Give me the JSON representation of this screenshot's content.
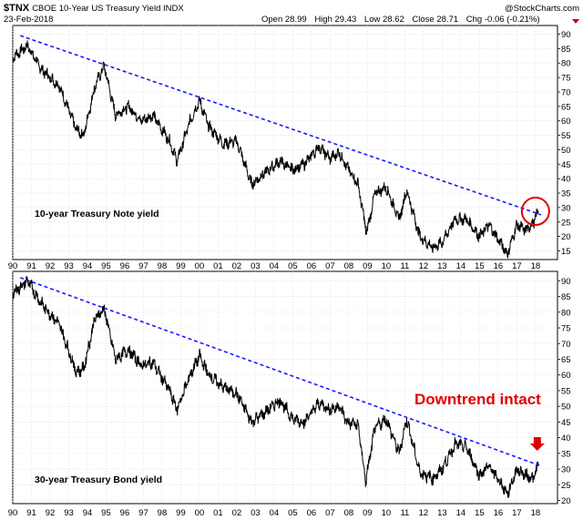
{
  "header": {
    "symbol": "$TNX",
    "name": "CBOE 10-Year US Treasury Yield INDX",
    "date": "23-Feb-2018",
    "brand": "@StockCharts.com",
    "open_label": "Open",
    "open_value": "28.99",
    "high_label": "High",
    "high_value": "29.43",
    "low_label": "Low",
    "low_value": "28.62",
    "close_label": "Close",
    "close_value": "28.71",
    "chg_label": "Chg",
    "chg_value": "-0.06 (-0.21%)",
    "chg_arrow_color": "#cc0000"
  },
  "x_ticks": [
    "90",
    "91",
    "92",
    "93",
    "94",
    "95",
    "96",
    "97",
    "98",
    "99",
    "00",
    "01",
    "02",
    "03",
    "04",
    "05",
    "06",
    "07",
    "08",
    "09",
    "10",
    "11",
    "12",
    "13",
    "14",
    "15",
    "16",
    "17",
    "18"
  ],
  "colors": {
    "trend": "#1a1aff",
    "series": "#000000",
    "annotation": "#e00000",
    "grid": "#d8d8d8"
  },
  "chart_data": [
    {
      "type": "line",
      "series_label": "10-year Treasury Note yield",
      "x_unit": "year",
      "xlim": [
        1990.0,
        2018.3
      ],
      "ylim": [
        12,
        93
      ],
      "yticks": [
        15,
        20,
        25,
        30,
        35,
        40,
        45,
        50,
        55,
        60,
        65,
        70,
        75,
        80,
        85,
        90
      ],
      "x": [
        1990.0,
        1990.8,
        1991.5,
        1992.5,
        1993.4,
        1993.8,
        1994.4,
        1994.9,
        1995.5,
        1996.2,
        1996.9,
        1997.5,
        1998.4,
        1998.8,
        1999.5,
        2000.0,
        2000.5,
        2001.3,
        2002.0,
        2002.8,
        2003.5,
        2004.3,
        2005.0,
        2005.6,
        2006.4,
        2007.0,
        2007.5,
        2007.9,
        2008.5,
        2008.95,
        2009.4,
        2010.0,
        2010.7,
        2011.1,
        2011.8,
        2012.5,
        2013.0,
        2013.7,
        2014.3,
        2015.0,
        2015.5,
        2016.2,
        2016.5,
        2017.0,
        2017.5,
        2017.9,
        2018.15
      ],
      "values": [
        82,
        86,
        78,
        72,
        57,
        55,
        72,
        79,
        62,
        65,
        60,
        62,
        53,
        46,
        60,
        67,
        58,
        52,
        53,
        38,
        42,
        46,
        43,
        45,
        51,
        47,
        49,
        44,
        38,
        21,
        35,
        37,
        26,
        36,
        20,
        16,
        18,
        26,
        26,
        20,
        24,
        17,
        14,
        24,
        22,
        25,
        28.7
      ],
      "trendline": {
        "x": [
          1990.4,
          2018.3
        ],
        "values": [
          89.5,
          27.5
        ]
      },
      "highlight_circle": {
        "x": 2018.0,
        "value": 28.7,
        "color": "#e00000"
      }
    },
    {
      "type": "line",
      "series_label": "30-year Treasury Bond yield",
      "annotation": "Downtrend intact",
      "x_unit": "year",
      "xlim": [
        1990.0,
        2018.3
      ],
      "ylim": [
        19,
        93
      ],
      "yticks": [
        20,
        25,
        30,
        35,
        40,
        45,
        50,
        55,
        60,
        65,
        70,
        75,
        80,
        85,
        90
      ],
      "x": [
        1990.0,
        1990.8,
        1991.5,
        1992.5,
        1993.4,
        1993.8,
        1994.4,
        1994.9,
        1995.5,
        1996.2,
        1996.9,
        1997.5,
        1998.4,
        1998.8,
        1999.5,
        2000.0,
        2000.5,
        2001.3,
        2002.0,
        2002.8,
        2003.5,
        2004.3,
        2005.0,
        2005.6,
        2006.4,
        2007.0,
        2007.5,
        2007.9,
        2008.5,
        2008.9,
        2009.4,
        2010.0,
        2010.7,
        2011.1,
        2011.8,
        2012.5,
        2013.0,
        2013.7,
        2014.3,
        2015.0,
        2015.5,
        2016.2,
        2016.5,
        2017.0,
        2017.5,
        2017.9,
        2018.15
      ],
      "values": [
        86,
        90,
        83,
        76,
        61,
        62,
        78,
        81,
        65,
        68,
        63,
        64,
        55,
        49,
        60,
        66,
        60,
        56,
        54,
        45,
        48,
        52,
        46,
        45,
        51,
        49,
        50,
        45,
        44,
        26,
        43,
        46,
        35,
        46,
        29,
        27,
        30,
        38,
        37,
        28,
        31,
        25,
        22,
        30,
        28,
        27,
        31.5
      ],
      "trendline": {
        "x": [
          1990.4,
          2018.3
        ],
        "values": [
          91,
          31
        ]
      },
      "arrow": {
        "x": 2018.0,
        "color": "#e00000"
      }
    }
  ]
}
